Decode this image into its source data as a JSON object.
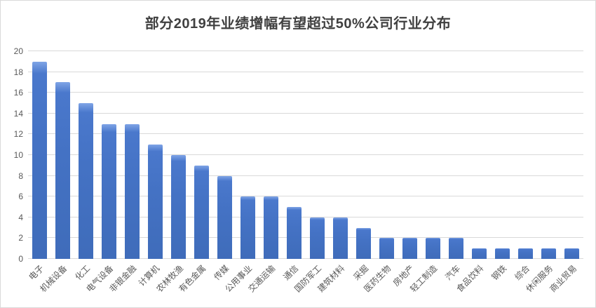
{
  "colors": {
    "background": "#ffffff",
    "frame_border": "#d9d9d9",
    "title_text": "#404040",
    "axis_text": "#595959",
    "gridline": "#d9d9d9",
    "bar": "#4472c4"
  },
  "chart_data": {
    "type": "bar",
    "title": "部分2019年业绩增幅有望超过50%公司行业分布",
    "xlabel": "",
    "ylabel": "",
    "ylim": [
      0,
      20
    ],
    "yticks": [
      0,
      2,
      4,
      6,
      8,
      10,
      12,
      14,
      16,
      18,
      20
    ],
    "grid": true,
    "legend": false,
    "bar_color": "#4472c4",
    "categories": [
      "电子",
      "机械设备",
      "化工",
      "电气设备",
      "非银金融",
      "计算机",
      "农林牧渔",
      "有色金属",
      "传媒",
      "公用事业",
      "交通运输",
      "通信",
      "国防军工",
      "建筑材料",
      "采掘",
      "医药生物",
      "房地产",
      "轻工制造",
      "汽车",
      "食品饮料",
      "钢铁",
      "综合",
      "休闲服务",
      "商业贸易"
    ],
    "values": [
      19,
      17,
      15,
      13,
      13,
      11,
      10,
      9,
      8,
      6,
      6,
      5,
      4,
      4,
      3,
      2,
      2,
      2,
      2,
      1,
      1,
      1,
      1,
      1
    ]
  }
}
